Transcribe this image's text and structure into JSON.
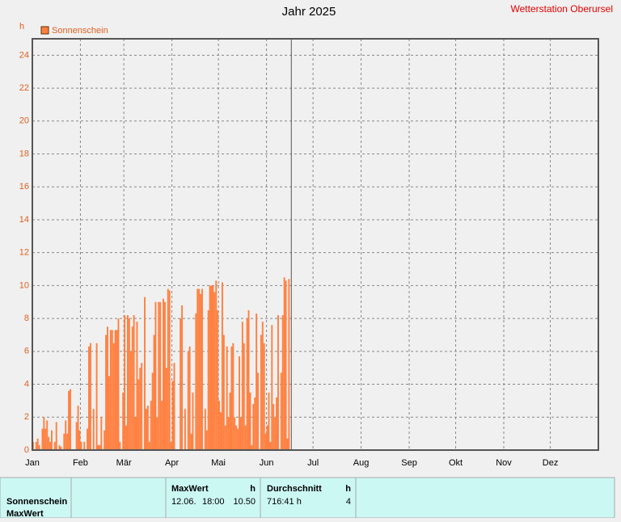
{
  "chart_data": {
    "type": "bar",
    "title": "Jahr 2025",
    "station": "Wetterstation Oberursel",
    "y_unit": "h",
    "series": [
      {
        "name": "Sonnenschein",
        "color": "#ff8040",
        "values": [
          0.5,
          0,
          0.5,
          0.7,
          0.3,
          0,
          1.3,
          2.0,
          1.3,
          1.8,
          0.8,
          0.5,
          1.2,
          0,
          0.5,
          1.7,
          0,
          0.3,
          0.2,
          0,
          1.0,
          1.8,
          1.0,
          3.6,
          3.7,
          0,
          0,
          0,
          1.7,
          2.7,
          1.2,
          0.5,
          0,
          0.5,
          0,
          1.3,
          6.3,
          6.5,
          0,
          2.5,
          0,
          6.5,
          0.3,
          0.3,
          2.0,
          0,
          1.2,
          7.0,
          7.5,
          4.5,
          7.3,
          7.3,
          6.5,
          7.3,
          7.3,
          8.0,
          0.5,
          0,
          3.5,
          8.2,
          1.5,
          8.2,
          8.0,
          6.0,
          7.5,
          8.2,
          2.0,
          7.8,
          4.3,
          5.0,
          5.3,
          0,
          9.3,
          2.5,
          2.7,
          0.5,
          3.0,
          4.7,
          7.0,
          9.0,
          2.0,
          9.0,
          9.0,
          3.0,
          9.2,
          9.0,
          5.0,
          9.8,
          9.7,
          0.5,
          4.2,
          5.3,
          0,
          0,
          0,
          8.0,
          8.8,
          0,
          2.5,
          0,
          6.0,
          6.3,
          1.0,
          3.5,
          0,
          8.3,
          9.8,
          9.8,
          9.5,
          9.8,
          0,
          2.5,
          1.2,
          8.5,
          10.0,
          10.0,
          10.0,
          9.6,
          10.3,
          8.5,
          3.0,
          2.3,
          10.2,
          7.0,
          1.5,
          6.3,
          2.0,
          3.5,
          6.3,
          6.5,
          2.0,
          1.5,
          1.3,
          5.7,
          2.0,
          7.8,
          6.5,
          1.5,
          8.0,
          8.5,
          3.5,
          0.3,
          2.8,
          3.2,
          8.3,
          4.7,
          0,
          7.0,
          7.8,
          6.5,
          1.0,
          1.5,
          3.5,
          0.5,
          7.6,
          2.8,
          2.0,
          3.2,
          8.2,
          0,
          4.7,
          8.2,
          10.5,
          10.3,
          0.7,
          10.4,
          0
        ]
      }
    ],
    "xlim": [
      0,
      365
    ],
    "xticks": [
      {
        "value": 0,
        "label": "Jan"
      },
      {
        "value": 31,
        "label": "Feb"
      },
      {
        "value": 59,
        "label": "Mär"
      },
      {
        "value": 90,
        "label": "Apr"
      },
      {
        "value": 120,
        "label": "Mai"
      },
      {
        "value": 151,
        "label": "Jun"
      },
      {
        "value": 181,
        "label": "Jul"
      },
      {
        "value": 212,
        "label": "Aug"
      },
      {
        "value": 243,
        "label": "Sep"
      },
      {
        "value": 273,
        "label": "Okt"
      },
      {
        "value": 304,
        "label": "Nov"
      },
      {
        "value": 334,
        "label": "Dez"
      }
    ],
    "ylim": [
      0,
      25
    ],
    "yticks": [
      0,
      2,
      4,
      6,
      8,
      10,
      12,
      14,
      16,
      18,
      20,
      22,
      24
    ],
    "grid": true,
    "marker_x": 167
  },
  "table": {
    "row_labels": [
      "Sonnenschein",
      "MaxWert"
    ],
    "columns": [
      {
        "header": "MaxWert",
        "unit": "h",
        "cells": [
          "12.06.",
          "18:00",
          "10.50"
        ]
      },
      {
        "header": "Durchschnitt",
        "unit": "h",
        "cells": [
          "716:41 h",
          "4"
        ]
      }
    ]
  }
}
